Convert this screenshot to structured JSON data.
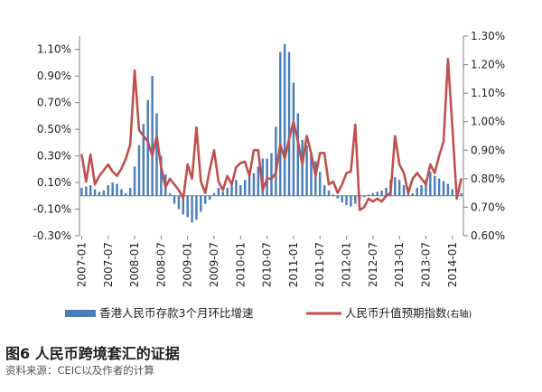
{
  "chart_data": {
    "type": "bar",
    "caption": "图6 人民币跨境套汇的证据",
    "source": "资料来源：CEIC以及作者的计算",
    "left_axis": {
      "ylim": [
        -0.003,
        0.012
      ],
      "ticks": [
        -0.003,
        -0.001,
        0.001,
        0.003,
        0.005,
        0.007,
        0.009,
        0.011
      ],
      "tick_labels": [
        "-0.30%",
        "-0.10%",
        "0.10%",
        "0.30%",
        "0.50%",
        "0.70%",
        "0.90%",
        "1.10%"
      ]
    },
    "right_axis": {
      "ylim": [
        0.6,
        1.3
      ],
      "ticks": [
        0.6,
        0.7,
        0.8,
        0.9,
        1.0,
        1.1,
        1.2,
        1.3
      ],
      "tick_labels": [
        "0.60%",
        "0.70%",
        "0.80%",
        "0.90%",
        "1.00%",
        "1.10%",
        "1.20%",
        "1.30%"
      ]
    },
    "x_start": "2007-01",
    "x_tick_labels": [
      "2007-01",
      "2007-07",
      "2008-01",
      "2008-07",
      "2009-01",
      "2009-07",
      "2010-01",
      "2010-07",
      "2011-01",
      "2011-07",
      "2012-01",
      "2012-07",
      "2013-01",
      "2013-07",
      "2014-01"
    ],
    "legend_position": "bottom",
    "series": [
      {
        "name": "香港人民币存款3个月环比增速",
        "axis": "left",
        "type": "bar",
        "color": "#4a7ebb",
        "values": [
          0.0006,
          0.0007,
          0.0008,
          0.0005,
          0.0003,
          0.0004,
          0.0008,
          0.001,
          0.0009,
          0.0005,
          0.0002,
          0.0006,
          0.0022,
          0.0038,
          0.0054,
          0.0072,
          0.009,
          0.0062,
          0.003,
          0.0016,
          0.0002,
          -0.0006,
          -0.001,
          -0.0014,
          -0.0016,
          -0.002,
          -0.0018,
          -0.0012,
          -0.0006,
          -0.0003,
          0.0002,
          0.0006,
          0.0003,
          0.0006,
          0.0009,
          0.0012,
          0.0008,
          0.0012,
          0.0015,
          0.0017,
          0.0022,
          0.0028,
          0.0028,
          0.0032,
          0.0052,
          0.0108,
          0.0114,
          0.0108,
          0.0085,
          0.0062,
          0.0042,
          0.0038,
          0.0032,
          0.0026,
          0.0018,
          0.0008,
          0.0004,
          0.0001,
          -0.0002,
          -0.0005,
          -0.0007,
          -0.0008,
          -0.0006,
          -0.0003,
          -0.0001,
          0.0001,
          0.0002,
          0.0003,
          0.0004,
          0.0006,
          0.0012,
          0.0014,
          0.0012,
          0.0008,
          0.0004,
          0.0002,
          0.0006,
          0.0008,
          0.0012,
          0.0018,
          0.0015,
          0.0013,
          0.0011,
          0.0009,
          0.0005,
          0.0003,
          0.0002
        ]
      },
      {
        "name": "人民币升值预期指数",
        "name_note": "(右轴)",
        "axis": "right",
        "type": "line",
        "color": "#c0504d",
        "values": [
          0.885,
          0.79,
          0.885,
          0.78,
          0.81,
          0.83,
          0.85,
          0.825,
          0.81,
          0.835,
          0.87,
          0.92,
          1.18,
          0.97,
          0.95,
          0.93,
          0.88,
          0.95,
          0.84,
          0.77,
          0.8,
          0.78,
          0.76,
          0.73,
          0.85,
          0.8,
          0.98,
          0.79,
          0.75,
          0.83,
          0.9,
          0.79,
          0.76,
          0.81,
          0.78,
          0.84,
          0.855,
          0.86,
          0.81,
          0.9,
          0.9,
          0.76,
          0.8,
          0.8,
          0.82,
          0.92,
          0.87,
          0.94,
          1.0,
          0.93,
          0.85,
          0.95,
          0.89,
          0.81,
          0.89,
          0.89,
          0.78,
          0.79,
          0.75,
          0.78,
          0.82,
          0.825,
          0.99,
          0.69,
          0.7,
          0.73,
          0.72,
          0.73,
          0.72,
          0.74,
          0.75,
          0.95,
          0.85,
          0.82,
          0.75,
          0.8,
          0.82,
          0.8,
          0.78,
          0.85,
          0.82,
          0.88,
          0.93,
          1.22,
          0.98,
          0.73,
          0.8
        ]
      }
    ]
  }
}
